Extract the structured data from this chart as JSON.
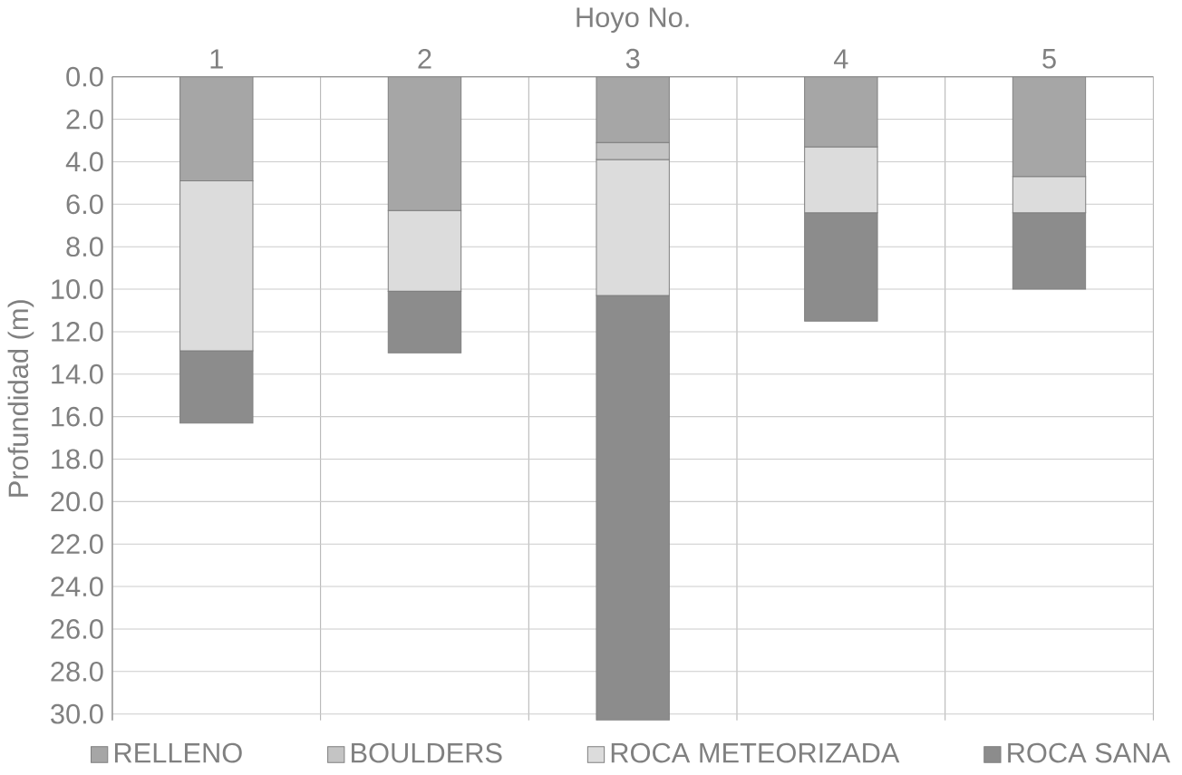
{
  "chart_data": {
    "type": "bar",
    "stacked": true,
    "xlabel": "Hoyo No.",
    "ylabel": "Profundidad (m)",
    "categories": [
      "1",
      "2",
      "3",
      "4",
      "5"
    ],
    "series": [
      {
        "name": "RELLENO",
        "color": "#a6a6a6",
        "values": [
          4.9,
          6.3,
          3.1,
          3.3,
          4.7
        ]
      },
      {
        "name": "BOULDERS",
        "color": "#c4c4c4",
        "values": [
          0,
          0,
          0.8,
          0,
          0
        ]
      },
      {
        "name": "ROCA METEORIZADA",
        "color": "#dcdcdc",
        "values": [
          8.0,
          3.8,
          6.4,
          3.1,
          1.7
        ]
      },
      {
        "name": "ROCA SANA",
        "color": "#8c8c8c",
        "values": [
          3.4,
          2.9,
          20.0,
          5.1,
          3.6
        ]
      }
    ],
    "ylim": [
      30.3,
      0
    ],
    "yticks": [
      {
        "value": 0,
        "label": "0.0"
      },
      {
        "value": 2,
        "label": "2.0"
      },
      {
        "value": 4,
        "label": "4.0"
      },
      {
        "value": 6,
        "label": "6.0"
      },
      {
        "value": 8,
        "label": "8.0"
      },
      {
        "value": 10,
        "label": "10.0"
      },
      {
        "value": 12,
        "label": "12.0"
      },
      {
        "value": 14,
        "label": "14.0"
      },
      {
        "value": 16,
        "label": "16.0"
      },
      {
        "value": 18,
        "label": "18.0"
      },
      {
        "value": 20,
        "label": "20.0"
      },
      {
        "value": 22,
        "label": "22.0"
      },
      {
        "value": 24,
        "label": "24.0"
      },
      {
        "value": 26,
        "label": "26.0"
      },
      {
        "value": 28,
        "label": "28.0"
      },
      {
        "value": 30,
        "label": "30.0"
      }
    ],
    "grid": true,
    "legend": "bottom"
  }
}
